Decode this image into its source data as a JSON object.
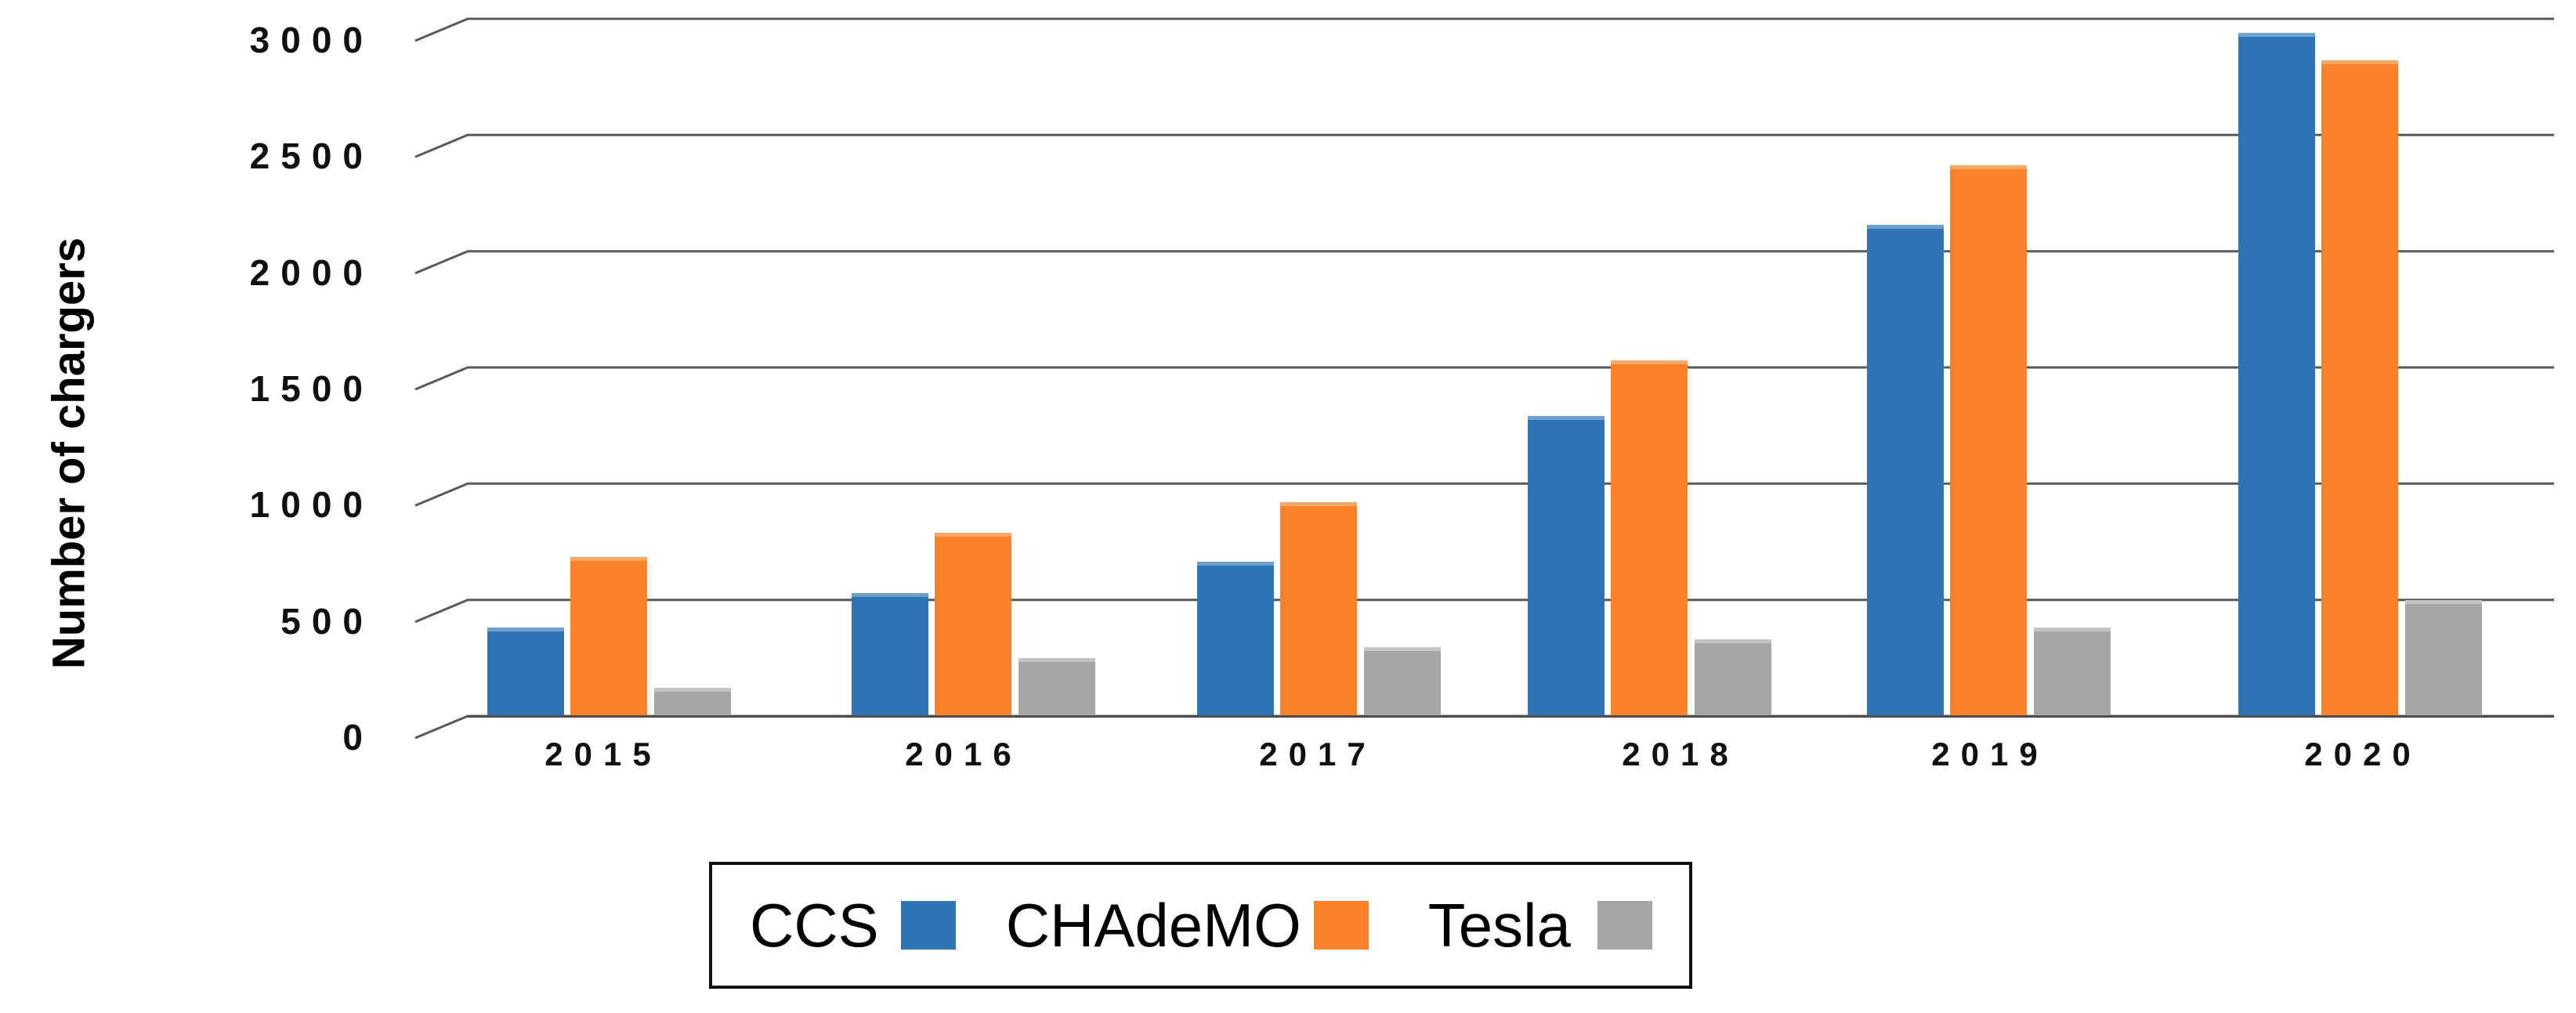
{
  "chart_data": {
    "type": "bar",
    "title": "",
    "xlabel": "",
    "ylabel": "Number of chargers",
    "categories": [
      "2015",
      "2016",
      "2017",
      "2018",
      "2019",
      "2020"
    ],
    "series": [
      {
        "name": "CCS",
        "color": "#2E75B6",
        "highlight": "#6FA0D2",
        "values": [
          380,
          530,
          665,
          1290,
          2115,
          2940
        ]
      },
      {
        "name": "CHAdeMO",
        "color": "#F9812B",
        "highlight": "#FBA768",
        "values": [
          685,
          790,
          920,
          1530,
          2370,
          2820
        ]
      },
      {
        "name": "Tesla",
        "color": "#A6A6A6",
        "highlight": "#C4C4C4",
        "values": [
          120,
          250,
          295,
          330,
          380,
          500
        ]
      }
    ],
    "y_ticks": [
      0,
      500,
      1000,
      1500,
      2000,
      2500,
      3000
    ],
    "ylim": [
      0,
      3000
    ],
    "grid": true,
    "gridline_color": "#595959",
    "legend_position": "bottom",
    "legend_labels": [
      "CCS",
      "CHAdeMO",
      "Tesla"
    ]
  }
}
